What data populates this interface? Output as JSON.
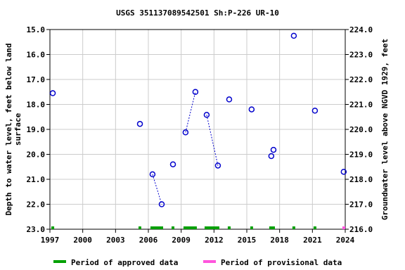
{
  "chart_data": {
    "type": "scatter",
    "title": "USGS 351137089542501 Sh:P-226 UR-10",
    "y_label": [
      "Depth to water level, feet below land",
      "surface"
    ],
    "y2_label": "Groundwater level above NGVD 1929, feet",
    "xlim": [
      1997,
      2024
    ],
    "xticks": [
      1997,
      2000,
      2003,
      2006,
      2009,
      2012,
      2015,
      2018,
      2021,
      2024
    ],
    "ylim": [
      23,
      15
    ],
    "yticks": [
      {
        "value": 15,
        "label": "15.0"
      },
      {
        "value": 16,
        "label": "16.0"
      },
      {
        "value": 17,
        "label": "17.0"
      },
      {
        "value": 18,
        "label": "18.0"
      },
      {
        "value": 19,
        "label": "19.0"
      },
      {
        "value": 20,
        "label": "20.0"
      },
      {
        "value": 21,
        "label": "21.0"
      },
      {
        "value": 22,
        "label": "22.0"
      },
      {
        "value": 23,
        "label": "23.0"
      }
    ],
    "y2lim": [
      216,
      224
    ],
    "y2ticks": [
      {
        "value": 216,
        "label": "216.0"
      },
      {
        "value": 217,
        "label": "217.0"
      },
      {
        "value": 218,
        "label": "218.0"
      },
      {
        "value": 219,
        "label": "219.0"
      },
      {
        "value": 220,
        "label": "220.0"
      },
      {
        "value": 221,
        "label": "221.0"
      },
      {
        "value": 222,
        "label": "222.0"
      },
      {
        "value": 223,
        "label": "223.0"
      },
      {
        "value": 224,
        "label": "224.0"
      }
    ],
    "series": [
      {
        "color": "#0000cc",
        "x": [
          1997.26,
          null,
          2005.23,
          null,
          2006.38,
          2007.22,
          null,
          2008.25,
          null,
          2009.4,
          2010.3,
          null,
          2011.33,
          2012.36,
          null,
          2013.39,
          null,
          2015.44,
          null,
          2017.24,
          null,
          2017.44,
          null,
          2019.3,
          null,
          2021.23,
          null,
          2023.86
        ],
        "values": [
          17.55,
          null,
          18.78,
          null,
          20.8,
          22.0,
          null,
          20.4,
          null,
          19.12,
          17.5,
          null,
          18.42,
          20.45,
          null,
          17.8,
          null,
          18.2,
          null,
          20.07,
          null,
          19.82,
          null,
          15.25,
          null,
          18.25,
          null,
          20.7
        ]
      }
    ],
    "periods": [
      {
        "name": "Period of approved data",
        "color": "#00a000",
        "ranges": [
          [
            1997.13,
            1997.39
          ],
          [
            2005.1,
            2005.35
          ],
          [
            2006.19,
            2007.35
          ],
          [
            2008.12,
            2008.38
          ],
          [
            2009.21,
            2010.43
          ],
          [
            2011.14,
            2012.49
          ],
          [
            2013.26,
            2013.52
          ],
          [
            2015.32,
            2015.57
          ],
          [
            2017.05,
            2017.57
          ],
          [
            2019.17,
            2019.43
          ],
          [
            2021.1,
            2021.36
          ]
        ]
      },
      {
        "name": "Period of provisional data",
        "color": "#ff55dd",
        "ranges": [
          [
            2023.74,
            2024.0
          ]
        ]
      }
    ]
  }
}
